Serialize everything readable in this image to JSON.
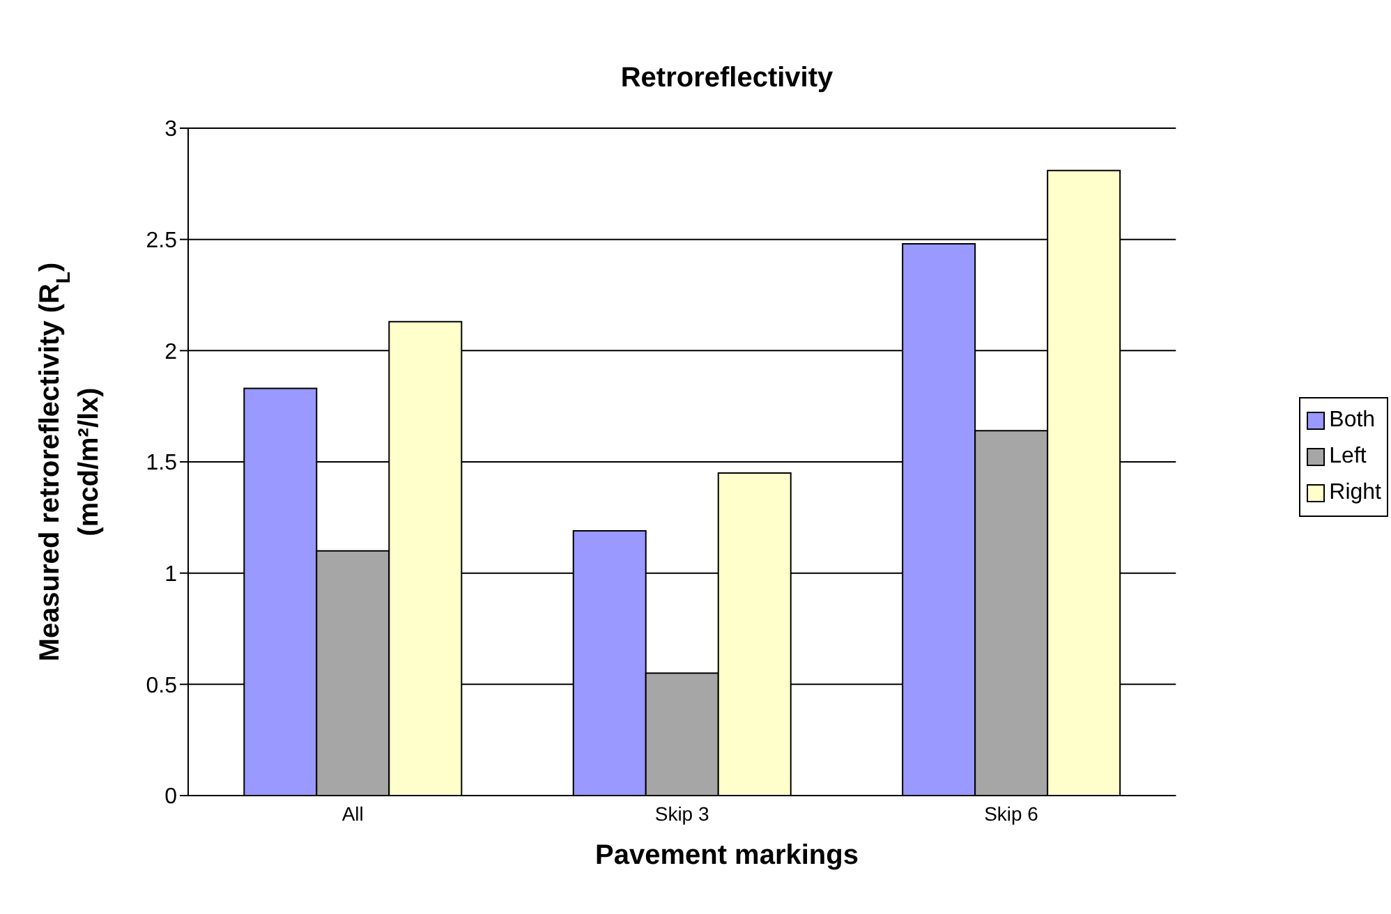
{
  "chart_data": {
    "type": "bar",
    "title": "Retroreflectivity",
    "xlabel": "Pavement markings",
    "ylabel": "Measured retroreflectivity (R$_{L}$)\n(mcd/m²/lx)",
    "categories": [
      "All",
      "Skip 3",
      "Skip 6"
    ],
    "series": [
      {
        "name": "Both",
        "color": "#9999ff",
        "values": [
          1.83,
          1.19,
          2.48
        ]
      },
      {
        "name": "Left",
        "color": "#a6a6a6",
        "values": [
          1.1,
          0.55,
          1.64
        ]
      },
      {
        "name": "Right",
        "color": "#ffffcc",
        "values": [
          2.13,
          1.45,
          2.81
        ]
      }
    ],
    "ylim": [
      0,
      3
    ],
    "yticks": [
      0,
      0.5,
      1,
      1.5,
      2,
      2.5,
      3
    ],
    "grid": "y",
    "legend": "right"
  }
}
